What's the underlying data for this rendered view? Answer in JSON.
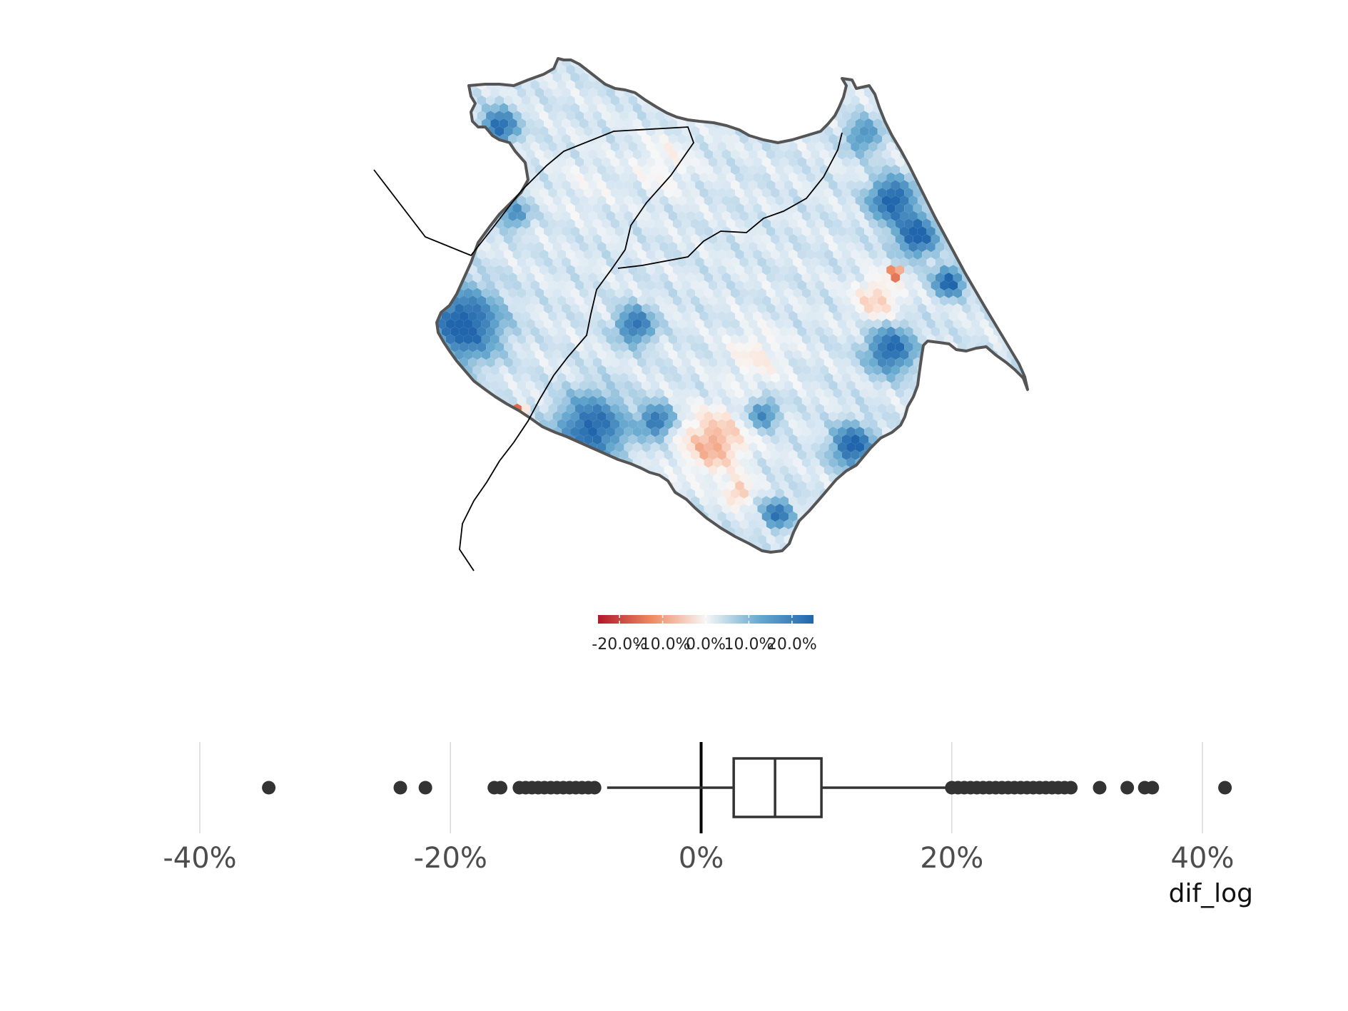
{
  "chart_data": [
    {
      "type": "heatmap",
      "subtype": "hexbin-map",
      "title": "",
      "color_scale": {
        "diverging": true,
        "low_color": "#b2182b",
        "mid_color": "#f7f7f7",
        "high_color": "#2166ac",
        "range": [
          -0.25,
          0.25
        ],
        "ticks": [
          -0.2,
          -0.1,
          0.0,
          0.1,
          0.2
        ],
        "tick_labels": [
          "-20.0%",
          "-10.0%",
          "0.0%",
          "10.0%",
          "20.0%"
        ]
      },
      "notable_regions": [
        {
          "description": "strong positive clusters along the western, southern and eastern coast",
          "approx_value": 0.2
        },
        {
          "description": "negative (red) cluster near the south-center",
          "approx_value": -0.12
        },
        {
          "description": "small strongly negative spot in the east",
          "approx_value": -0.25
        }
      ]
    },
    {
      "type": "box",
      "xlabel": "dif_log",
      "xlim": [
        -0.45,
        0.45
      ],
      "x_ticks": [
        -0.4,
        -0.2,
        0.0,
        0.2,
        0.4
      ],
      "x_tick_labels": [
        "-40%",
        "-20%",
        "0%",
        "20%",
        "40%"
      ],
      "reference_line": 0.0,
      "grid": true,
      "stats": {
        "whisker_low": -0.075,
        "q1": 0.026,
        "median": 0.059,
        "q3": 0.096,
        "whisker_high": 0.197
      },
      "outliers": [
        -0.345,
        -0.24,
        -0.22,
        -0.165,
        -0.16,
        -0.145,
        -0.14,
        -0.135,
        -0.13,
        -0.125,
        -0.12,
        -0.115,
        -0.11,
        -0.105,
        -0.1,
        -0.095,
        -0.09,
        -0.085,
        0.2,
        0.205,
        0.21,
        0.215,
        0.22,
        0.225,
        0.23,
        0.235,
        0.24,
        0.245,
        0.25,
        0.255,
        0.26,
        0.265,
        0.27,
        0.275,
        0.28,
        0.285,
        0.29,
        0.295,
        0.318,
        0.34,
        0.354,
        0.36,
        0.418
      ]
    }
  ],
  "colors": {
    "boundary": "#555555",
    "line": "#000000",
    "box": "#333333",
    "grid": "#d9d9d9"
  }
}
